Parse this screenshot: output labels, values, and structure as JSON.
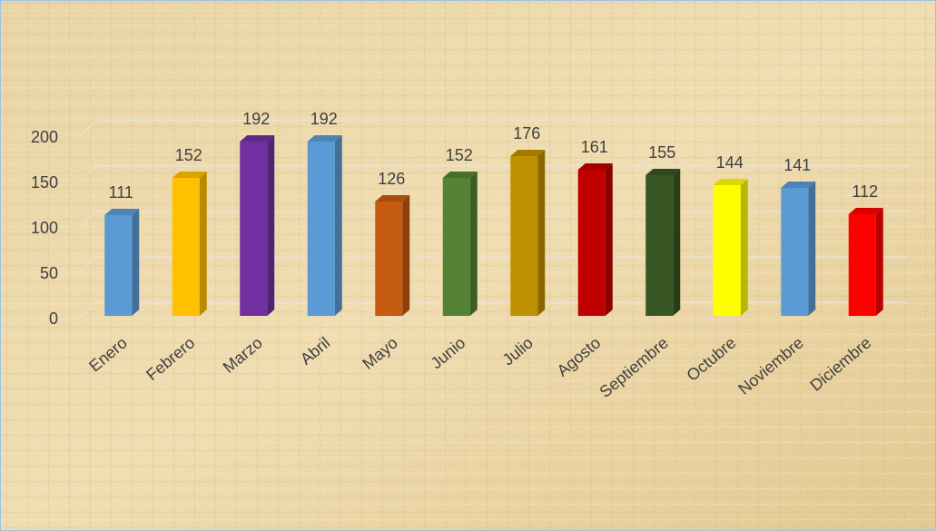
{
  "chart_data": {
    "type": "bar",
    "categories": [
      "Enero",
      "Febrero",
      "Marzo",
      "Abril",
      "Mayo",
      "Junio",
      "Julio",
      "Agosto",
      "Septiembre",
      "Octubre",
      "Noviembre",
      "Diciembre"
    ],
    "values": [
      111,
      152,
      192,
      192,
      126,
      152,
      176,
      161,
      155,
      144,
      141,
      112
    ],
    "colors": [
      "#5b9bd5",
      "#ffc000",
      "#7030a0",
      "#5b9bd5",
      "#c55a11",
      "#548235",
      "#bf9000",
      "#c00000",
      "#375623",
      "#ffff00",
      "#5b9bd5",
      "#ff0000"
    ],
    "ylim": [
      0,
      200
    ],
    "yticks": [
      0,
      50,
      100,
      150,
      200
    ],
    "grid": true
  }
}
